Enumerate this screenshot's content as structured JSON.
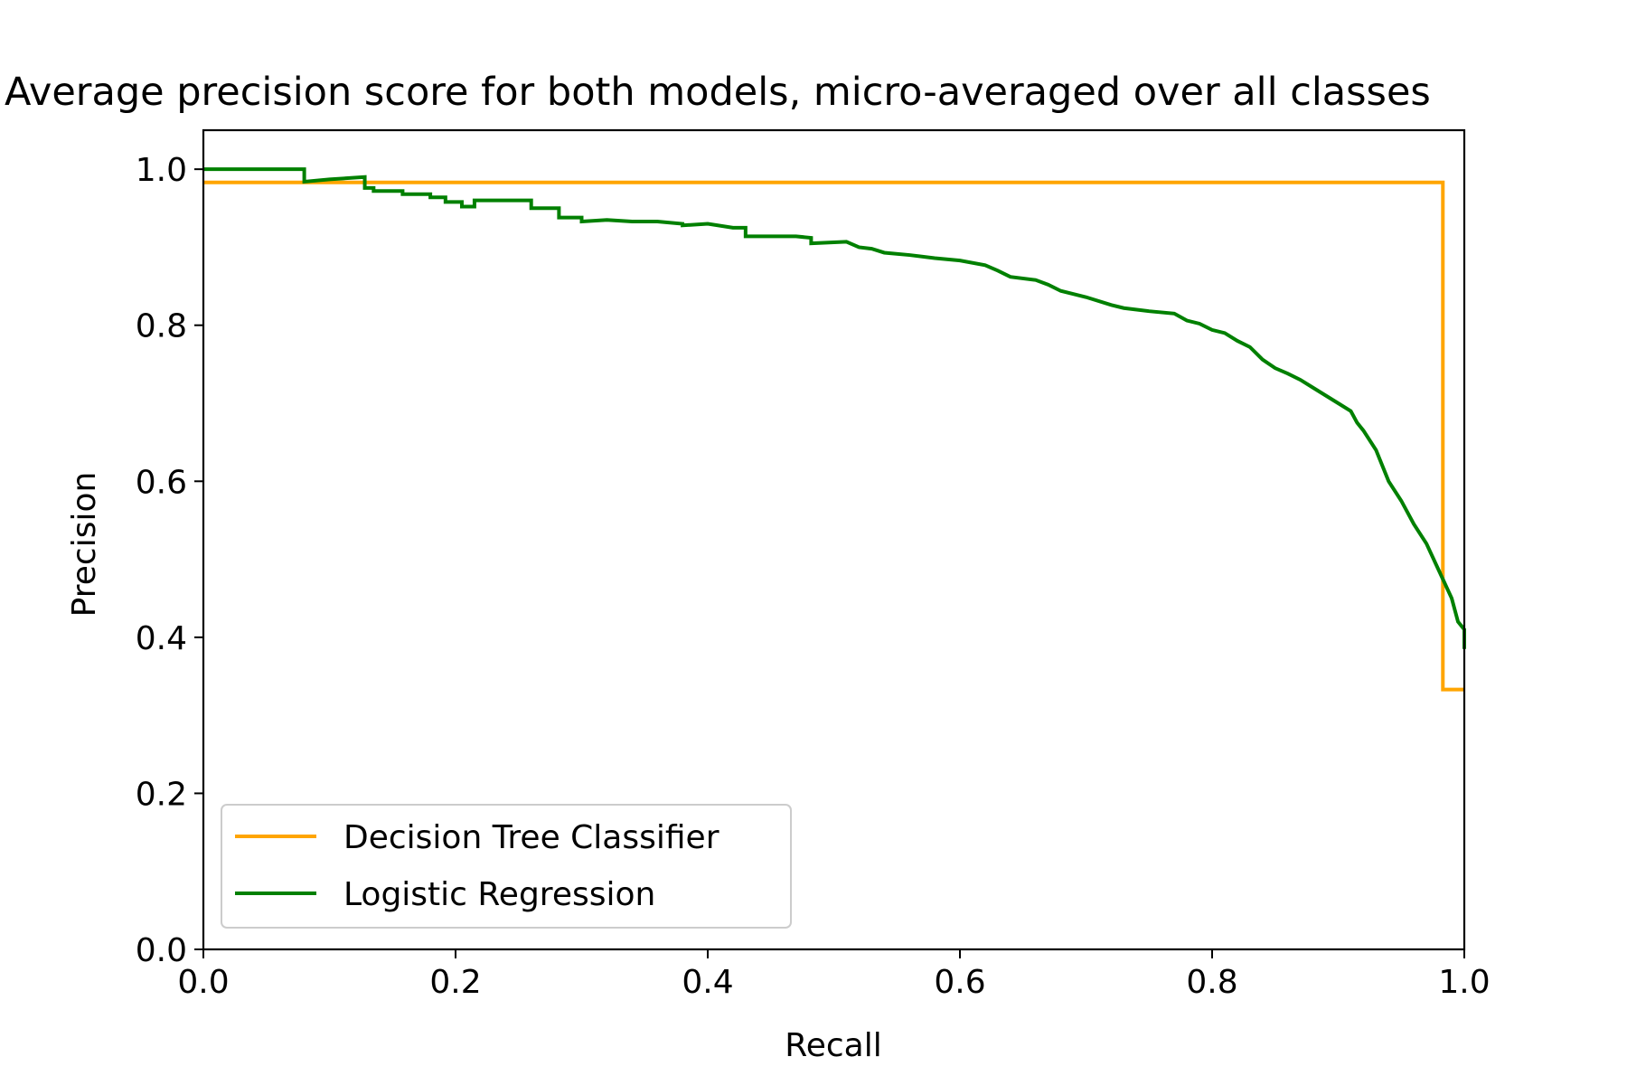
{
  "chart_data": {
    "type": "line",
    "title": "Average precision score for both models, micro-averaged over all classes",
    "xlabel": "Recall",
    "ylabel": "Precision",
    "xlim": [
      0.0,
      1.0
    ],
    "ylim": [
      0.0,
      1.05
    ],
    "xticks": [
      0.0,
      0.2,
      0.4,
      0.6,
      0.8,
      1.0
    ],
    "xtick_labels": [
      "0.0",
      "0.2",
      "0.4",
      "0.6",
      "0.8",
      "1.0"
    ],
    "yticks": [
      0.0,
      0.2,
      0.4,
      0.6,
      0.8,
      1.0
    ],
    "ytick_labels": [
      "0.0",
      "0.2",
      "0.4",
      "0.6",
      "0.8",
      "1.0"
    ],
    "grid": false,
    "legend_position": "lower-left",
    "series": [
      {
        "name": "Decision Tree Classifier",
        "color": "#ffa500",
        "step": true,
        "x": [
          0.0,
          0.983,
          0.983,
          1.0
        ],
        "y": [
          0.983,
          0.983,
          0.333,
          0.333
        ]
      },
      {
        "name": "Logistic Regression",
        "color": "#008000",
        "step": true,
        "x": [
          0.0,
          0.08,
          0.08,
          0.1,
          0.128,
          0.128,
          0.135,
          0.135,
          0.158,
          0.158,
          0.18,
          0.18,
          0.192,
          0.192,
          0.205,
          0.205,
          0.215,
          0.215,
          0.26,
          0.26,
          0.282,
          0.282,
          0.3,
          0.3,
          0.32,
          0.34,
          0.36,
          0.38,
          0.38,
          0.4,
          0.42,
          0.43,
          0.43,
          0.47,
          0.482,
          0.482,
          0.51,
          0.52,
          0.53,
          0.54,
          0.56,
          0.58,
          0.6,
          0.62,
          0.63,
          0.64,
          0.66,
          0.67,
          0.68,
          0.69,
          0.7,
          0.72,
          0.73,
          0.75,
          0.77,
          0.78,
          0.79,
          0.8,
          0.81,
          0.82,
          0.83,
          0.84,
          0.85,
          0.86,
          0.87,
          0.88,
          0.89,
          0.9,
          0.91,
          0.915,
          0.92,
          0.93,
          0.94,
          0.95,
          0.96,
          0.97,
          0.98,
          0.99,
          0.995,
          1.0,
          1.0
        ],
        "y": [
          1.0,
          1.0,
          0.984,
          0.987,
          0.99,
          0.976,
          0.976,
          0.972,
          0.972,
          0.968,
          0.968,
          0.964,
          0.964,
          0.958,
          0.958,
          0.952,
          0.952,
          0.96,
          0.96,
          0.95,
          0.95,
          0.938,
          0.938,
          0.933,
          0.935,
          0.933,
          0.933,
          0.93,
          0.928,
          0.93,
          0.925,
          0.925,
          0.914,
          0.914,
          0.912,
          0.905,
          0.907,
          0.9,
          0.898,
          0.893,
          0.89,
          0.886,
          0.883,
          0.877,
          0.87,
          0.862,
          0.858,
          0.852,
          0.844,
          0.84,
          0.836,
          0.826,
          0.822,
          0.818,
          0.815,
          0.806,
          0.802,
          0.794,
          0.79,
          0.78,
          0.772,
          0.756,
          0.745,
          0.738,
          0.73,
          0.72,
          0.71,
          0.7,
          0.69,
          0.675,
          0.665,
          0.64,
          0.6,
          0.575,
          0.545,
          0.52,
          0.485,
          0.45,
          0.42,
          0.41,
          0.385
        ]
      }
    ]
  }
}
